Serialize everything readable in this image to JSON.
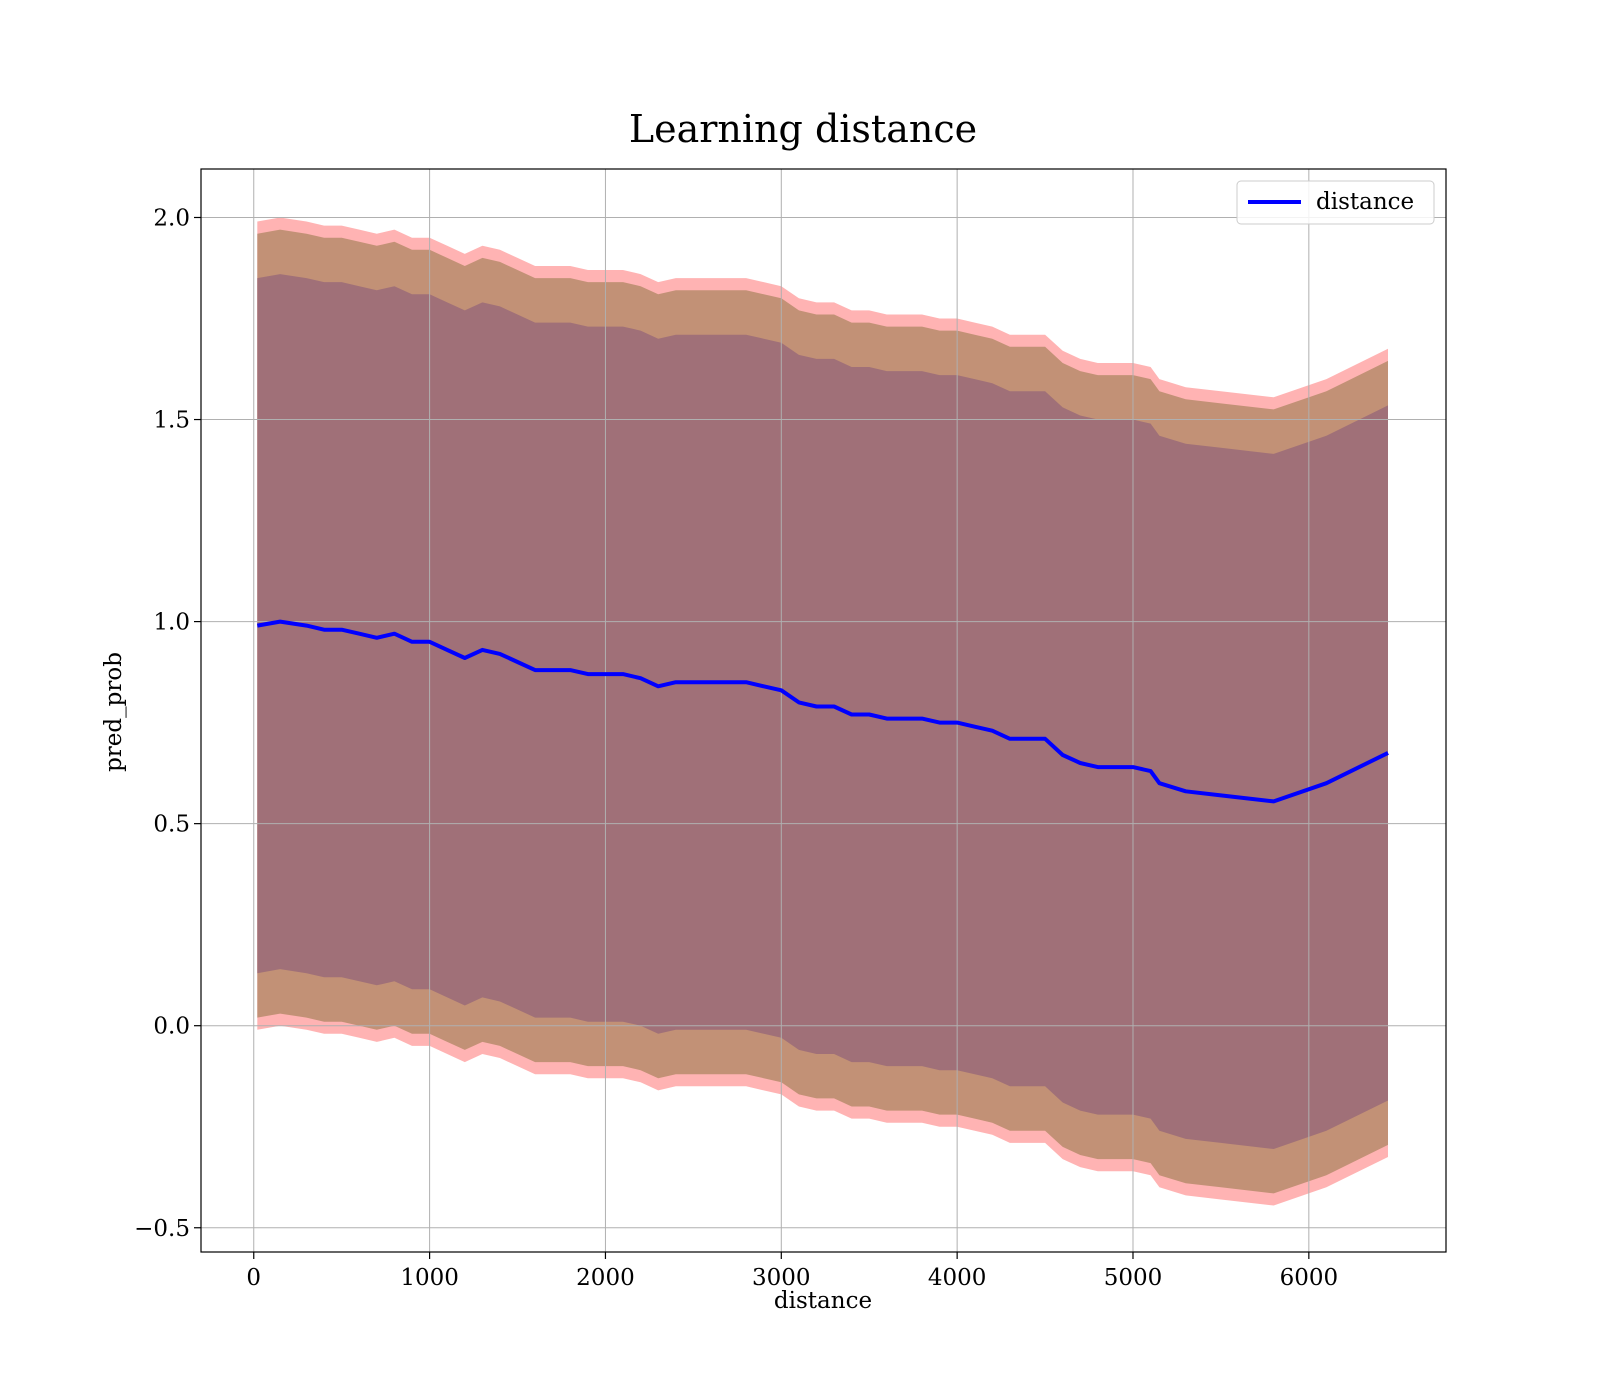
{
  "chart_data": {
    "type": "area",
    "title": "Learning distance",
    "xlabel": "distance",
    "ylabel": "pred_prob",
    "xlim": [
      -300,
      6780
    ],
    "ylim": [
      -0.56,
      2.12
    ],
    "xticks": [
      0,
      1000,
      2000,
      3000,
      4000,
      5000,
      6000
    ],
    "yticks": [
      -0.5,
      0.0,
      0.5,
      1.0,
      1.5,
      2.0
    ],
    "ytick_labels": [
      "−0.5",
      "0.0",
      "0.5",
      "1.0",
      "1.5",
      "2.0"
    ],
    "grid": true,
    "legend": {
      "position": "top-right",
      "entries": [
        "distance"
      ]
    },
    "x": [
      20,
      150,
      300,
      400,
      500,
      600,
      700,
      800,
      900,
      1000,
      1100,
      1200,
      1300,
      1400,
      1500,
      1600,
      1700,
      1800,
      1900,
      2000,
      2100,
      2200,
      2300,
      2400,
      2500,
      2600,
      2700,
      2800,
      2900,
      3000,
      3100,
      3200,
      3300,
      3400,
      3500,
      3600,
      3700,
      3800,
      3900,
      4000,
      4100,
      4200,
      4300,
      4400,
      4500,
      4600,
      4700,
      4800,
      4900,
      5000,
      5100,
      5150,
      5300,
      5500,
      5800,
      6100,
      6450
    ],
    "series": [
      {
        "name": "distance",
        "color": "#0000ff",
        "values": [
          0.99,
          1.0,
          0.99,
          0.98,
          0.98,
          0.97,
          0.96,
          0.97,
          0.95,
          0.95,
          0.93,
          0.91,
          0.93,
          0.92,
          0.9,
          0.88,
          0.88,
          0.88,
          0.87,
          0.87,
          0.87,
          0.86,
          0.84,
          0.85,
          0.85,
          0.85,
          0.85,
          0.85,
          0.84,
          0.83,
          0.8,
          0.79,
          0.79,
          0.77,
          0.77,
          0.76,
          0.76,
          0.76,
          0.75,
          0.75,
          0.74,
          0.73,
          0.71,
          0.71,
          0.71,
          0.67,
          0.65,
          0.64,
          0.64,
          0.64,
          0.63,
          0.6,
          0.58,
          0.57,
          0.555,
          0.6,
          0.675
        ]
      }
    ],
    "bands": [
      {
        "color": "#ff9999",
        "opacity": 0.75,
        "offset": 1.0
      },
      {
        "color": "#b38866",
        "opacity": 0.8,
        "offset": 0.97
      },
      {
        "color": "#a07078",
        "opacity": 1.0,
        "offset": 0.86
      }
    ]
  }
}
